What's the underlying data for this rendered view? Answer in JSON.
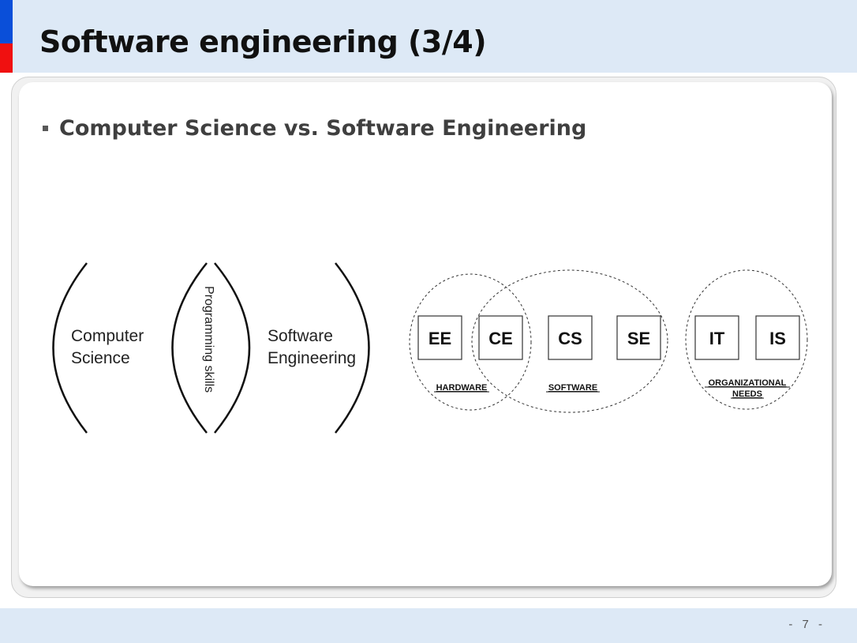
{
  "slide": {
    "title": "Software engineering (3/4)",
    "bullet": "Computer Science vs. Software Engineering",
    "page_number": "- 7 -"
  },
  "left_diagram": {
    "left_label_line1": "Computer",
    "left_label_line2": "Science",
    "middle_label": "Programming skills",
    "right_label_line1": "Software",
    "right_label_line2": "Engineering"
  },
  "right_diagram": {
    "boxes": [
      "EE",
      "CE",
      "CS",
      "SE",
      "IT",
      "IS"
    ],
    "region_hardware": "HARDWARE",
    "region_software": "SOFTWARE",
    "region_org_line1": "ORGANIZATIONAL",
    "region_org_line2": "NEEDS"
  }
}
